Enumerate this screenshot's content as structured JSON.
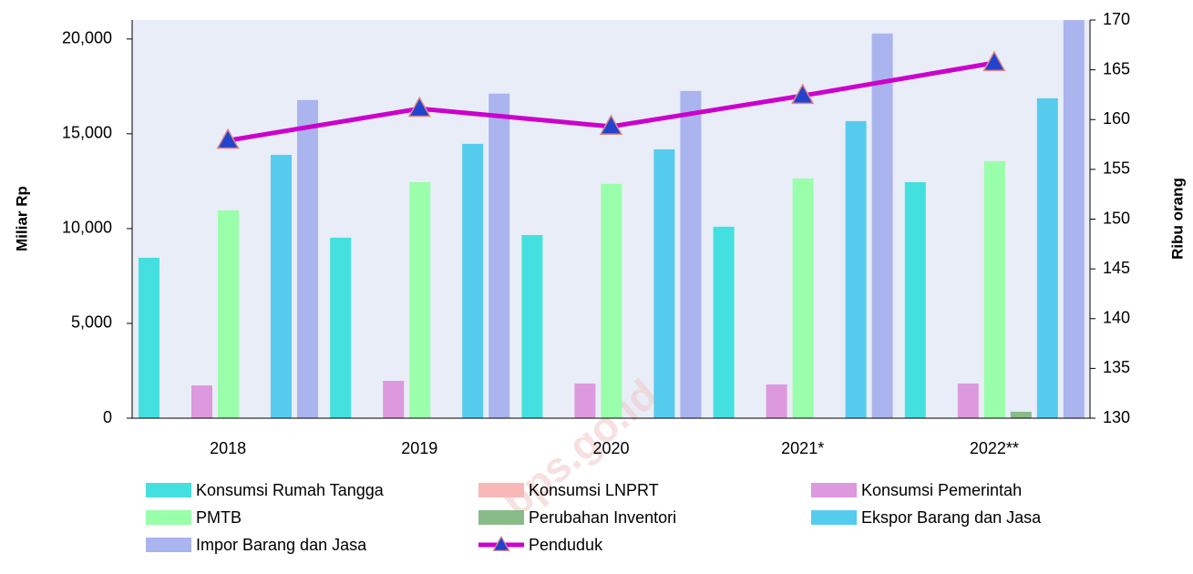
{
  "chart_data": {
    "type": "bar",
    "watermark": "bps.go.id",
    "ylabel": "Miliar Rp",
    "y2label": "Ribu orang",
    "categories": [
      "2018",
      "2019",
      "2020",
      "2021*",
      "2022**"
    ],
    "ylim": [
      0,
      21000
    ],
    "yticks": [
      0,
      {
        "value": 5000,
        "label": "5,000"
      },
      {
        "value": 10000,
        "label": "10,000"
      },
      {
        "value": 15000,
        "label": "15,000"
      },
      {
        "value": 20000,
        "label": "20,000"
      }
    ],
    "y2lim": [
      130,
      170
    ],
    "y2ticks": [
      130,
      135,
      140,
      145,
      150,
      155,
      160,
      165,
      170
    ],
    "series": [
      {
        "name": "Konsumsi Rumah Tangga",
        "color": "#44e0e0",
        "values": [
          8460,
          9520,
          9660,
          10100,
          12450
        ]
      },
      {
        "name": "Konsumsi LNPRT",
        "color": "#f8b8b8",
        "values": [
          0,
          0,
          0,
          0,
          0
        ]
      },
      {
        "name": "Konsumsi Pemerintah",
        "color": "#dd99dd",
        "values": [
          1730,
          1970,
          1830,
          1780,
          1830
        ]
      },
      {
        "name": "PMTB",
        "color": "#99ffaa",
        "values": [
          10960,
          12450,
          12360,
          12640,
          13560
        ]
      },
      {
        "name": "Perubahan Inventori",
        "color": "#88bb88",
        "values": [
          0,
          0,
          0,
          0,
          340
        ]
      },
      {
        "name": "Ekspor Barang dan Jasa",
        "color": "#55ccee",
        "values": [
          13890,
          14470,
          14180,
          15670,
          16870
        ]
      },
      {
        "name": "Impor Barang dan Jasa",
        "color": "#aab4ee",
        "values": [
          16780,
          17120,
          17260,
          20290,
          21500
        ]
      },
      {
        "name": "Penduduk",
        "type": "line",
        "axis": "y2",
        "color": "#cc00cc",
        "marker_color": "#2244cc",
        "values": [
          157.9,
          161.1,
          159.3,
          162.4,
          165.7
        ]
      }
    ]
  }
}
